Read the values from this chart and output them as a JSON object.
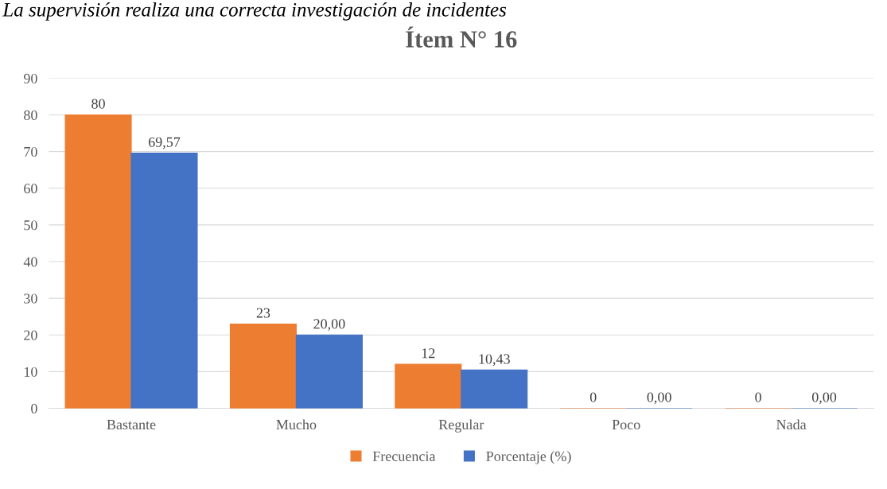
{
  "chart_data": {
    "type": "bar",
    "title": "Ítem N° 16",
    "annotations": [
      "La supervisión realiza una correcta investigación de incidentes"
    ],
    "categories": [
      "Bastante",
      "Mucho",
      "Regular",
      "Poco",
      "Nada"
    ],
    "series": [
      {
        "name": "Frecuencia",
        "color": "#ed7d31",
        "values": [
          80,
          23,
          12,
          0,
          0
        ],
        "value_labels": [
          "80",
          "23",
          "12",
          "0",
          "0"
        ]
      },
      {
        "name": "Porcentaje (%)",
        "color": "#4472c4",
        "values": [
          69.57,
          20.0,
          10.43,
          0.0,
          0.0
        ],
        "value_labels": [
          "69,57",
          "20,00",
          "10,43",
          "0,00",
          "0,00"
        ]
      }
    ],
    "ylim": [
      0,
      90
    ],
    "yticks": [
      0,
      10,
      20,
      30,
      40,
      50,
      60,
      70,
      80,
      90
    ],
    "grid": "y",
    "legend": "bottom"
  }
}
